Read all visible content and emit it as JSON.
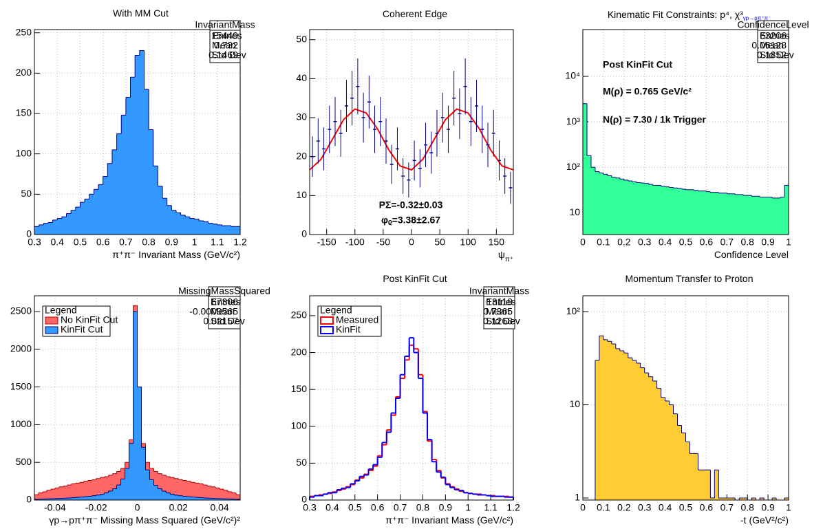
{
  "chart_data": [
    {
      "type": "histogram",
      "title": "With MM Cut",
      "xlabel": "π⁺π⁻ Invariant Mass (GeV/c²)",
      "bins": [
        0.3,
        0.32,
        0.34,
        0.36,
        0.38,
        0.4,
        0.42,
        0.44,
        0.46,
        0.48,
        0.5,
        0.52,
        0.54,
        0.56,
        0.58,
        0.6,
        0.62,
        0.64,
        0.66,
        0.68,
        0.7,
        0.72,
        0.74,
        0.76,
        0.78,
        0.8,
        0.82,
        0.84,
        0.86,
        0.88,
        0.9,
        0.92,
        0.94,
        0.96,
        0.98,
        1,
        1.02,
        1.04,
        1.06,
        1.08,
        1.1,
        1.12,
        1.14,
        1.16,
        1.18,
        1.2
      ],
      "values": [
        10,
        12,
        14,
        15,
        18,
        20,
        22,
        26,
        30,
        34,
        40,
        44,
        50,
        56,
        62,
        72,
        88,
        105,
        125,
        148,
        170,
        195,
        222,
        228,
        180,
        130,
        85,
        60,
        45,
        36,
        30,
        27,
        24,
        22,
        20,
        19,
        17,
        16,
        14,
        13,
        12,
        11,
        11,
        10,
        10
      ],
      "fill_color": "#3399ff",
      "line_color": "#000080",
      "xlim": [
        0.3,
        1.2
      ],
      "ylim": [
        0,
        254
      ],
      "xticks": [
        0.3,
        0.4,
        0.5,
        0.6,
        0.7,
        0.8,
        0.9,
        1,
        1.1,
        1.2
      ],
      "yticks": [
        0,
        50,
        100,
        150,
        200,
        250
      ],
      "grid": true,
      "stats": {
        "title": "InvariantMass",
        "rows": [
          [
            "Entries",
            15449
          ],
          [
            "Mean",
            0.732
          ],
          [
            "Std Dev",
            0.1469
          ]
        ]
      }
    },
    {
      "type": "errorbar",
      "title": "Coherent Edge",
      "xlabel": "ψ",
      "xlabel_sub": "π⁺",
      "x": [
        -175,
        -165,
        -155,
        -145,
        -135,
        -125,
        -115,
        -105,
        -95,
        -85,
        -75,
        -65,
        -55,
        -45,
        -35,
        -25,
        -15,
        -5,
        5,
        15,
        25,
        35,
        45,
        55,
        65,
        75,
        85,
        95,
        105,
        115,
        125,
        135,
        145,
        155,
        165,
        175
      ],
      "values": [
        20,
        24,
        22,
        27,
        29,
        26,
        33,
        35,
        38,
        30,
        34,
        27,
        29,
        24,
        18,
        22,
        15,
        14,
        19,
        17,
        23,
        21,
        26,
        30,
        27,
        35,
        31,
        38,
        29,
        33,
        27,
        23,
        26,
        19,
        15,
        12
      ],
      "errors": [
        5.2,
        5.8,
        5.5,
        6.1,
        6.3,
        6.0,
        6.7,
        7.0,
        7.2,
        6.4,
        6.8,
        6.1,
        6.3,
        5.8,
        5.0,
        5.5,
        4.6,
        4.5,
        5.1,
        4.9,
        5.7,
        5.4,
        6.0,
        6.4,
        6.1,
        7.0,
        6.5,
        7.2,
        6.3,
        6.7,
        6.1,
        5.7,
        6.0,
        5.1,
        4.6,
        4.1
      ],
      "color": "#000080",
      "fit": {
        "x": [
          -180,
          -160,
          -140,
          -120,
          -100,
          -80,
          -60,
          -40,
          -20,
          0,
          20,
          40,
          60,
          80,
          100,
          120,
          140,
          160,
          180
        ],
        "values": [
          16.6,
          19.3,
          24.4,
          29.5,
          32.2,
          31.2,
          27.1,
          21.7,
          17.6,
          16.6,
          19.3,
          24.4,
          29.5,
          32.2,
          31.2,
          27.1,
          21.7,
          17.6,
          16.6
        ],
        "color": "#ff0000"
      },
      "annotations": [
        "PΣ=-0.32±0.03",
        "φᵨ=3.38±2.67"
      ],
      "xlim": [
        -180,
        180
      ],
      "ylim": [
        0,
        52.6
      ],
      "xticks": [
        -150,
        -100,
        -50,
        0,
        50,
        100,
        150
      ],
      "yticks": [
        0,
        10,
        20,
        30,
        40,
        50
      ],
      "grid": true
    },
    {
      "type": "histogram",
      "title": "Kinematic Fit Constraints: p⁴, χ³",
      "title_sub": "γp→pπ⁺π⁻",
      "xlabel": "Confidence Level",
      "bins": [
        0,
        0.02,
        0.04,
        0.06,
        0.08,
        0.1,
        0.12,
        0.14,
        0.16,
        0.18,
        0.2,
        0.22,
        0.24,
        0.26,
        0.28,
        0.3,
        0.32,
        0.34,
        0.36,
        0.38,
        0.4,
        0.42,
        0.44,
        0.46,
        0.48,
        0.5,
        0.52,
        0.54,
        0.56,
        0.58,
        0.6,
        0.62,
        0.64,
        0.66,
        0.68,
        0.7,
        0.72,
        0.74,
        0.76,
        0.78,
        0.8,
        0.82,
        0.84,
        0.86,
        0.88,
        0.9,
        0.92,
        0.94,
        0.96,
        0.98,
        1
      ],
      "values": [
        2500,
        180,
        100,
        80,
        75,
        70,
        65,
        60,
        58,
        55,
        52,
        50,
        48,
        46,
        45,
        44,
        42,
        40,
        40,
        38,
        37,
        36,
        35,
        34,
        33,
        32,
        32,
        31,
        30,
        30,
        29,
        28,
        28,
        27,
        27,
        26,
        26,
        25,
        25,
        24,
        24,
        23,
        23,
        22,
        22,
        22,
        21,
        21,
        22,
        40
      ],
      "fill_color": "#33ff99",
      "line_color": "#000080",
      "log_y": true,
      "annotations": [
        "Post KinFit Cut",
        "M(ρ) = 0.765 GeV/c²",
        "N(ρ) = 7.30 / 1k Trigger"
      ],
      "xlim": [
        0,
        1
      ],
      "ylim": [
        3.3,
        107000
      ],
      "xticks": [
        0,
        0.1,
        0.2,
        0.3,
        0.4,
        0.5,
        0.6,
        0.7,
        0.8,
        0.9,
        1
      ],
      "yticks": [
        10,
        {
          "value": 100,
          "label": "10²"
        },
        {
          "value": 1000,
          "label": "10³"
        },
        {
          "value": 10000,
          "label": "10⁴"
        }
      ],
      "grid": true,
      "stats": {
        "title": "ConfidenceLevel",
        "rows": [
          [
            "Entries",
            63206
          ],
          [
            "Mean",
            0.06128
          ],
          [
            "Std Dev",
            0.1852
          ]
        ]
      }
    },
    {
      "type": "histogram",
      "xlabel": "γp→pπ⁺π⁻ Missing Mass Squared (GeV/c²)²",
      "bins": [
        -0.05,
        -0.048,
        -0.046,
        -0.044,
        -0.042,
        -0.04,
        -0.038,
        -0.036,
        -0.034,
        -0.032,
        -0.03,
        -0.028,
        -0.026,
        -0.024,
        -0.022,
        -0.02,
        -0.018,
        -0.016,
        -0.014,
        -0.012,
        -0.01,
        -0.008,
        -0.006,
        -0.004,
        -0.002,
        0,
        0.002,
        0.004,
        0.006,
        0.008,
        0.01,
        0.012,
        0.014,
        0.016,
        0.018,
        0.02,
        0.022,
        0.024,
        0.026,
        0.028,
        0.03,
        0.032,
        0.034,
        0.036,
        0.038,
        0.04,
        0.042,
        0.044,
        0.046,
        0.048,
        0.05
      ],
      "series": [
        {
          "name": "No KinFit Cut",
          "fill_color": "#ff6666",
          "line_color": "#b00000",
          "values": [
            70,
            95,
            110,
            130,
            145,
            160,
            175,
            185,
            200,
            215,
            225,
            235,
            250,
            260,
            270,
            285,
            300,
            310,
            330,
            350,
            380,
            420,
            500,
            800,
            2580,
            1500,
            750,
            500,
            420,
            380,
            350,
            330,
            310,
            300,
            285,
            270,
            260,
            250,
            235,
            225,
            215,
            200,
            185,
            175,
            160,
            145,
            130,
            110,
            95,
            70
          ]
        },
        {
          "name": "KinFit Cut",
          "fill_color": "#3399ff",
          "line_color": "#000080",
          "values": [
            10,
            12,
            14,
            16,
            18,
            20,
            22,
            25,
            28,
            32,
            36,
            40,
            45,
            50,
            58,
            66,
            78,
            95,
            120,
            150,
            200,
            280,
            420,
            750,
            2500,
            1500,
            700,
            400,
            270,
            195,
            150,
            118,
            95,
            78,
            65,
            57,
            50,
            44,
            40,
            36,
            32,
            28,
            25,
            22,
            20,
            18,
            16,
            14,
            12,
            10
          ]
        }
      ],
      "legend_title": "Legend",
      "legend_position": "top-left",
      "xlim": [
        -0.05,
        0.05
      ],
      "ylim": [
        0,
        2710
      ],
      "xticks": [
        -0.04,
        -0.02,
        0,
        0.02,
        0.04
      ],
      "yticks": [
        0,
        500,
        1000,
        1500,
        2000,
        2500
      ],
      "grid": true,
      "stats": {
        "title": "MissingMassSquared",
        "rows": [
          [
            "Entries",
            67306
          ],
          [
            "Mean",
            -0.0009565
          ],
          [
            "Std Dev",
            0.02157
          ]
        ]
      }
    },
    {
      "type": "histogram",
      "title": "Post KinFit Cut",
      "xlabel": "π⁺π⁻ Invariant Mass (GeV/c²)",
      "bins": [
        0.3,
        0.32,
        0.34,
        0.36,
        0.38,
        0.4,
        0.42,
        0.44,
        0.46,
        0.48,
        0.5,
        0.52,
        0.54,
        0.56,
        0.58,
        0.6,
        0.62,
        0.64,
        0.66,
        0.68,
        0.7,
        0.72,
        0.74,
        0.76,
        0.78,
        0.8,
        0.82,
        0.84,
        0.86,
        0.88,
        0.9,
        0.92,
        0.94,
        0.96,
        0.98,
        1,
        1.02,
        1.04,
        1.06,
        1.08,
        1.1,
        1.12,
        1.14,
        1.16,
        1.18,
        1.2
      ],
      "series": [
        {
          "name": "Measured",
          "line_color": "#ff0000",
          "values": [
            5,
            6,
            7,
            8,
            9,
            11,
            13,
            15,
            18,
            21,
            27,
            30,
            35,
            40,
            46,
            60,
            75,
            95,
            115,
            140,
            165,
            190,
            210,
            205,
            170,
            120,
            80,
            55,
            40,
            30,
            22,
            18,
            15,
            12,
            10,
            9,
            8,
            8,
            7,
            6,
            6,
            5,
            5,
            5,
            4
          ]
        },
        {
          "name": "KinFit",
          "line_color": "#0000ff",
          "values": [
            4,
            6,
            6,
            8,
            10,
            10,
            14,
            16,
            17,
            22,
            26,
            32,
            34,
            42,
            48,
            58,
            78,
            92,
            118,
            138,
            170,
            195,
            220,
            200,
            165,
            118,
            82,
            52,
            38,
            31,
            21,
            17,
            14,
            13,
            10,
            9,
            8,
            7,
            7,
            6,
            5,
            5,
            5,
            4,
            4
          ]
        }
      ],
      "legend_title": "Legend",
      "legend_position": "top-left",
      "xlim": [
        0.3,
        1.2
      ],
      "ylim": [
        0,
        277
      ],
      "xticks": [
        0.3,
        0.4,
        0.5,
        0.6,
        0.7,
        0.8,
        0.9,
        1,
        1.1,
        1.2
      ],
      "yticks": [
        0,
        50,
        100,
        150,
        200,
        250
      ],
      "grid": true,
      "stats": {
        "title": "InvariantMass",
        "rows": [
          [
            "Entries",
            13119
          ],
          [
            "Mean",
            0.7365
          ],
          [
            "Std Dev",
            0.1268
          ]
        ]
      }
    },
    {
      "type": "histogram",
      "title": "Momentum Transfer to Proton",
      "xlabel": "-t (GeV²/c²)",
      "bins": [
        0,
        0.02,
        0.04,
        0.06,
        0.08,
        0.1,
        0.12,
        0.14,
        0.16,
        0.18,
        0.2,
        0.22,
        0.24,
        0.26,
        0.28,
        0.3,
        0.32,
        0.34,
        0.36,
        0.38,
        0.4,
        0.42,
        0.44,
        0.46,
        0.48,
        0.5,
        0.52,
        0.54,
        0.56,
        0.58,
        0.6,
        0.62,
        0.64,
        0.66,
        0.68,
        0.7,
        0.72,
        0.74,
        0.76,
        0.78,
        0.8,
        0.82,
        0.84,
        0.86,
        0.88,
        0.9,
        0.92,
        0.94,
        0.96,
        0.98,
        1
      ],
      "values": [
        0,
        0,
        0,
        30,
        55,
        50,
        48,
        45,
        40,
        38,
        36,
        32,
        30,
        28,
        25,
        22,
        20,
        18,
        15,
        12,
        11,
        10,
        8,
        6,
        5,
        4,
        3,
        3,
        2,
        2,
        2,
        1,
        2,
        1,
        1,
        1,
        1,
        0,
        1,
        1,
        0,
        1,
        0,
        1,
        0,
        0,
        1,
        0,
        0,
        1
      ],
      "fill_color": "#ffcc33",
      "line_color": "#000080",
      "log_y": true,
      "xlim": [
        0,
        1
      ],
      "ylim": [
        0.95,
        148
      ],
      "xticks": [
        0,
        0.1,
        0.2,
        0.3,
        0.4,
        0.5,
        0.6,
        0.7,
        0.8,
        0.9,
        1
      ],
      "yticks": [
        1,
        10,
        {
          "value": 100,
          "label": "10²"
        }
      ],
      "grid": true
    }
  ]
}
